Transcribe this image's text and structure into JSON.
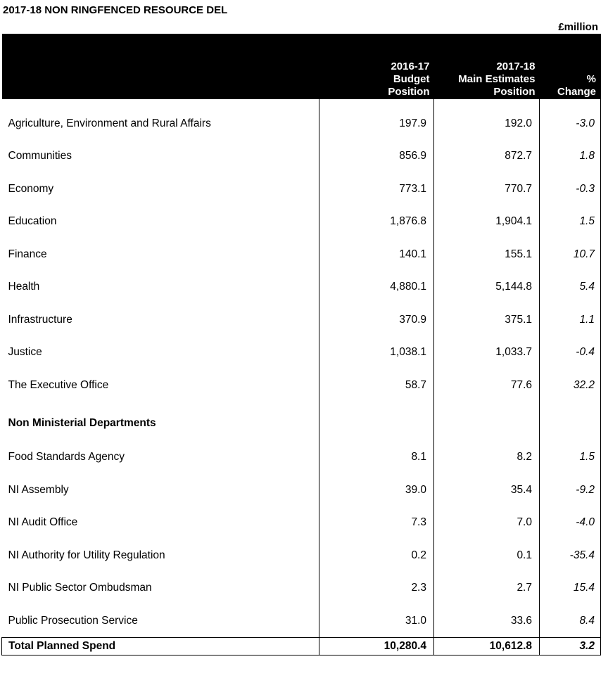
{
  "title": "2017-18 NON RINGFENCED RESOURCE DEL",
  "unit": "£million",
  "headers": {
    "label": "",
    "col1": [
      "2016-17",
      "Budget",
      "Position"
    ],
    "col2": [
      "2017-18",
      "Main Estimates",
      "Position"
    ],
    "col3": [
      "%",
      "Change"
    ]
  },
  "rows": [
    {
      "name": "Agriculture, Environment and Rural Affairs",
      "v2016": "197.9",
      "v2017": "192.0",
      "change": "-3.0"
    },
    {
      "name": "Communities",
      "v2016": "856.9",
      "v2017": "872.7",
      "change": "1.8"
    },
    {
      "name": "Economy",
      "v2016": "773.1",
      "v2017": "770.7",
      "change": "-0.3"
    },
    {
      "name": "Education",
      "v2016": "1,876.8",
      "v2017": "1,904.1",
      "change": "1.5"
    },
    {
      "name": "Finance",
      "v2016": "140.1",
      "v2017": "155.1",
      "change": "10.7"
    },
    {
      "name": "Health",
      "v2016": "4,880.1",
      "v2017": "5,144.8",
      "change": "5.4"
    },
    {
      "name": "Infrastructure",
      "v2016": "370.9",
      "v2017": "375.1",
      "change": "1.1"
    },
    {
      "name": "Justice",
      "v2016": "1,038.1",
      "v2017": "1,033.7",
      "change": "-0.4"
    },
    {
      "name": "The Executive Office",
      "v2016": "58.7",
      "v2017": "77.6",
      "change": "32.2"
    }
  ],
  "section_heading": "Non Ministerial Departments",
  "nmd_rows": [
    {
      "name": "Food Standards Agency",
      "v2016": "8.1",
      "v2017": "8.2",
      "change": "1.5"
    },
    {
      "name": "NI Assembly",
      "v2016": "39.0",
      "v2017": "35.4",
      "change": "-9.2"
    },
    {
      "name": "NI Audit Office",
      "v2016": "7.3",
      "v2017": "7.0",
      "change": "-4.0"
    },
    {
      "name": "NI Authority for Utility Regulation",
      "v2016": "0.2",
      "v2017": "0.1",
      "change": "-35.4"
    },
    {
      "name": "NI Public Sector Ombudsman",
      "v2016": "2.3",
      "v2017": "2.7",
      "change": "15.4"
    },
    {
      "name": "Public Prosecution Service",
      "v2016": "31.0",
      "v2017": "33.6",
      "change": "8.4"
    }
  ],
  "total": {
    "name": "Total Planned Spend",
    "v2016": "10,280.4",
    "v2017": "10,612.8",
    "change": "3.2"
  }
}
